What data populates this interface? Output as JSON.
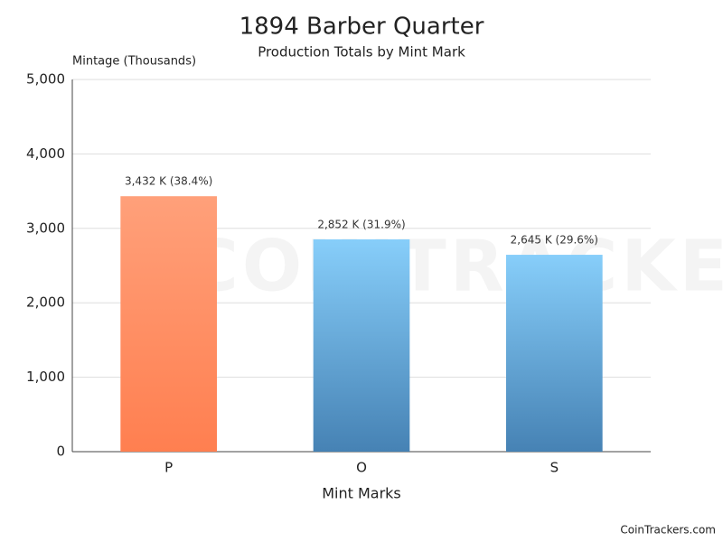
{
  "chart_data": {
    "type": "bar",
    "title": "1894 Barber Quarter",
    "subtitle": "Production Totals by Mint Mark",
    "y_axis_label": "Mintage (Thousands)",
    "x_axis_label": "Mint Marks",
    "categories": [
      "P",
      "O",
      "S"
    ],
    "values": [
      3432,
      2852,
      2645
    ],
    "value_labels": [
      "3,432 K (38.4%)",
      "2,852 K (31.9%)",
      "2,645 K (29.6%)"
    ],
    "colors": [
      {
        "top": "#ffa07a",
        "bottom": "#ff7f50"
      },
      {
        "top": "#87cefa",
        "bottom": "#4682b4"
      },
      {
        "top": "#87cefa",
        "bottom": "#4682b4"
      }
    ],
    "ylim": [
      0,
      5000
    ],
    "yticks": [
      0,
      {
        "value": 1000,
        "label": "1,000"
      },
      {
        "value": 2000,
        "label": "2,000"
      },
      {
        "value": 3000,
        "label": "3,000"
      },
      {
        "value": 4000,
        "label": "4,000"
      },
      {
        "value": 5000,
        "label": "5,000"
      }
    ],
    "grid": true,
    "watermark": "COINTRACKERS",
    "footer": "CoinTrackers.com"
  }
}
